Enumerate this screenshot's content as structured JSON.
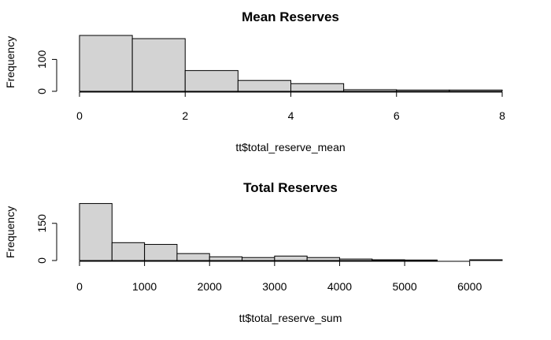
{
  "chart_data": [
    {
      "type": "histogram",
      "title": "Mean Reserves",
      "xlabel": "tt$total_reserve_mean",
      "ylabel": "Frequency",
      "bins": [
        {
          "x0": 0,
          "x1": 1,
          "count": 175
        },
        {
          "x0": 1,
          "x1": 2,
          "count": 165
        },
        {
          "x0": 2,
          "x1": 3,
          "count": 65
        },
        {
          "x0": 3,
          "x1": 4,
          "count": 34
        },
        {
          "x0": 4,
          "x1": 5,
          "count": 24
        },
        {
          "x0": 5,
          "x1": 6,
          "count": 5
        },
        {
          "x0": 6,
          "x1": 7,
          "count": 4
        },
        {
          "x0": 7,
          "x1": 8,
          "count": 4
        }
      ],
      "xticks": [
        0,
        2,
        4,
        6,
        8
      ],
      "yticks": [
        0,
        100
      ],
      "xlim": [
        0,
        8
      ],
      "ylim": [
        0,
        180
      ],
      "bar_color": "#d3d3d3",
      "grid": false
    },
    {
      "type": "histogram",
      "title": "Total Reserves",
      "xlabel": "tt$total_reserve_sum",
      "ylabel": "Frequency",
      "bins": [
        {
          "x0": 0,
          "x1": 500,
          "count": 230
        },
        {
          "x0": 500,
          "x1": 1000,
          "count": 72
        },
        {
          "x0": 1000,
          "x1": 1500,
          "count": 65
        },
        {
          "x0": 1500,
          "x1": 2000,
          "count": 28
        },
        {
          "x0": 2000,
          "x1": 2500,
          "count": 15
        },
        {
          "x0": 2500,
          "x1": 3000,
          "count": 12
        },
        {
          "x0": 3000,
          "x1": 3500,
          "count": 18
        },
        {
          "x0": 3500,
          "x1": 4000,
          "count": 12
        },
        {
          "x0": 4000,
          "x1": 4500,
          "count": 6
        },
        {
          "x0": 4500,
          "x1": 5000,
          "count": 3
        },
        {
          "x0": 5000,
          "x1": 5500,
          "count": 2
        },
        {
          "x0": 5500,
          "x1": 6000,
          "count": 0
        },
        {
          "x0": 6000,
          "x1": 6500,
          "count": 3
        }
      ],
      "xticks": [
        0,
        1000,
        2000,
        3000,
        4000,
        5000,
        6000
      ],
      "yticks": [
        0,
        150
      ],
      "xlim": [
        0,
        6500
      ],
      "ylim": [
        0,
        235
      ],
      "bar_color": "#d3d3d3",
      "grid": false
    }
  ]
}
